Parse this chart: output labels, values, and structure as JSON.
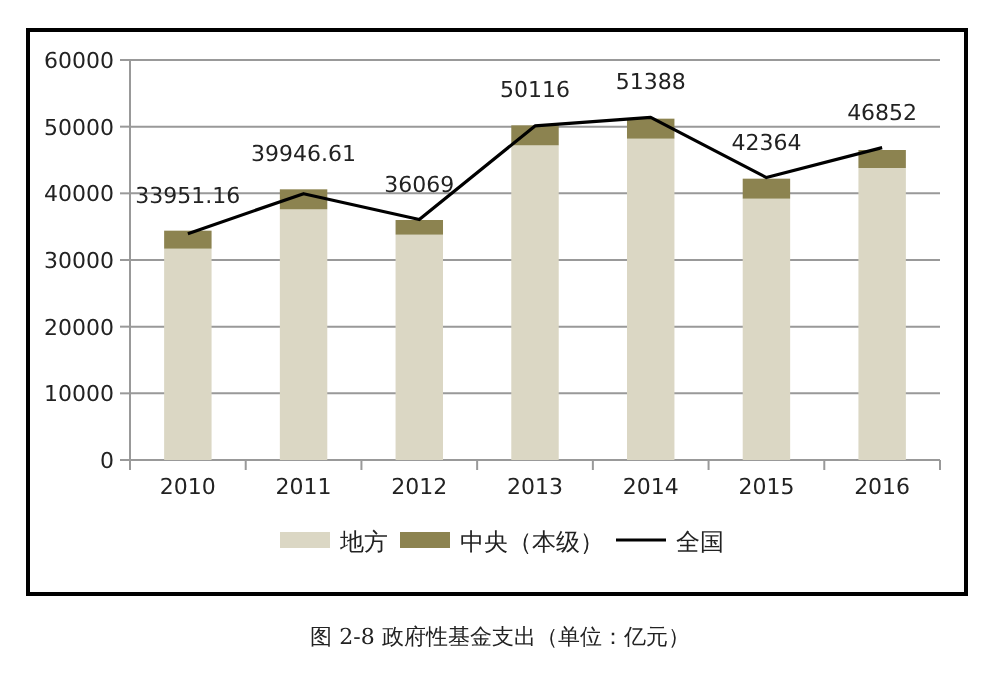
{
  "chart_data": {
    "type": "bar",
    "title": "图 2-8 政府性基金支出（单位：亿元）",
    "categories": [
      "2010",
      "2011",
      "2012",
      "2013",
      "2014",
      "2015",
      "2016"
    ],
    "stacked": true,
    "series": [
      {
        "name": "地方",
        "color": "#dbd7c4",
        "values": [
          31700,
          37600,
          33800,
          47200,
          48200,
          39200,
          43800
        ]
      },
      {
        "name": "中央（本级）",
        "color": "#8c8350",
        "values": [
          2700,
          3000,
          2200,
          3000,
          3000,
          3000,
          2700
        ]
      },
      {
        "name": "全国",
        "type": "line",
        "color": "#000000",
        "values": [
          33951.16,
          39946.61,
          36069,
          50116,
          51388,
          42364,
          46852
        ],
        "value_labels": [
          "33951.16",
          "39946.61",
          "36069",
          "50116",
          "51388",
          "42364",
          "46852"
        ]
      }
    ],
    "ylim": [
      0,
      60000
    ],
    "yticks": [
      0,
      10000,
      20000,
      30000,
      40000,
      50000,
      60000
    ],
    "grid": "y",
    "legend": "bottom",
    "marker": "none"
  }
}
